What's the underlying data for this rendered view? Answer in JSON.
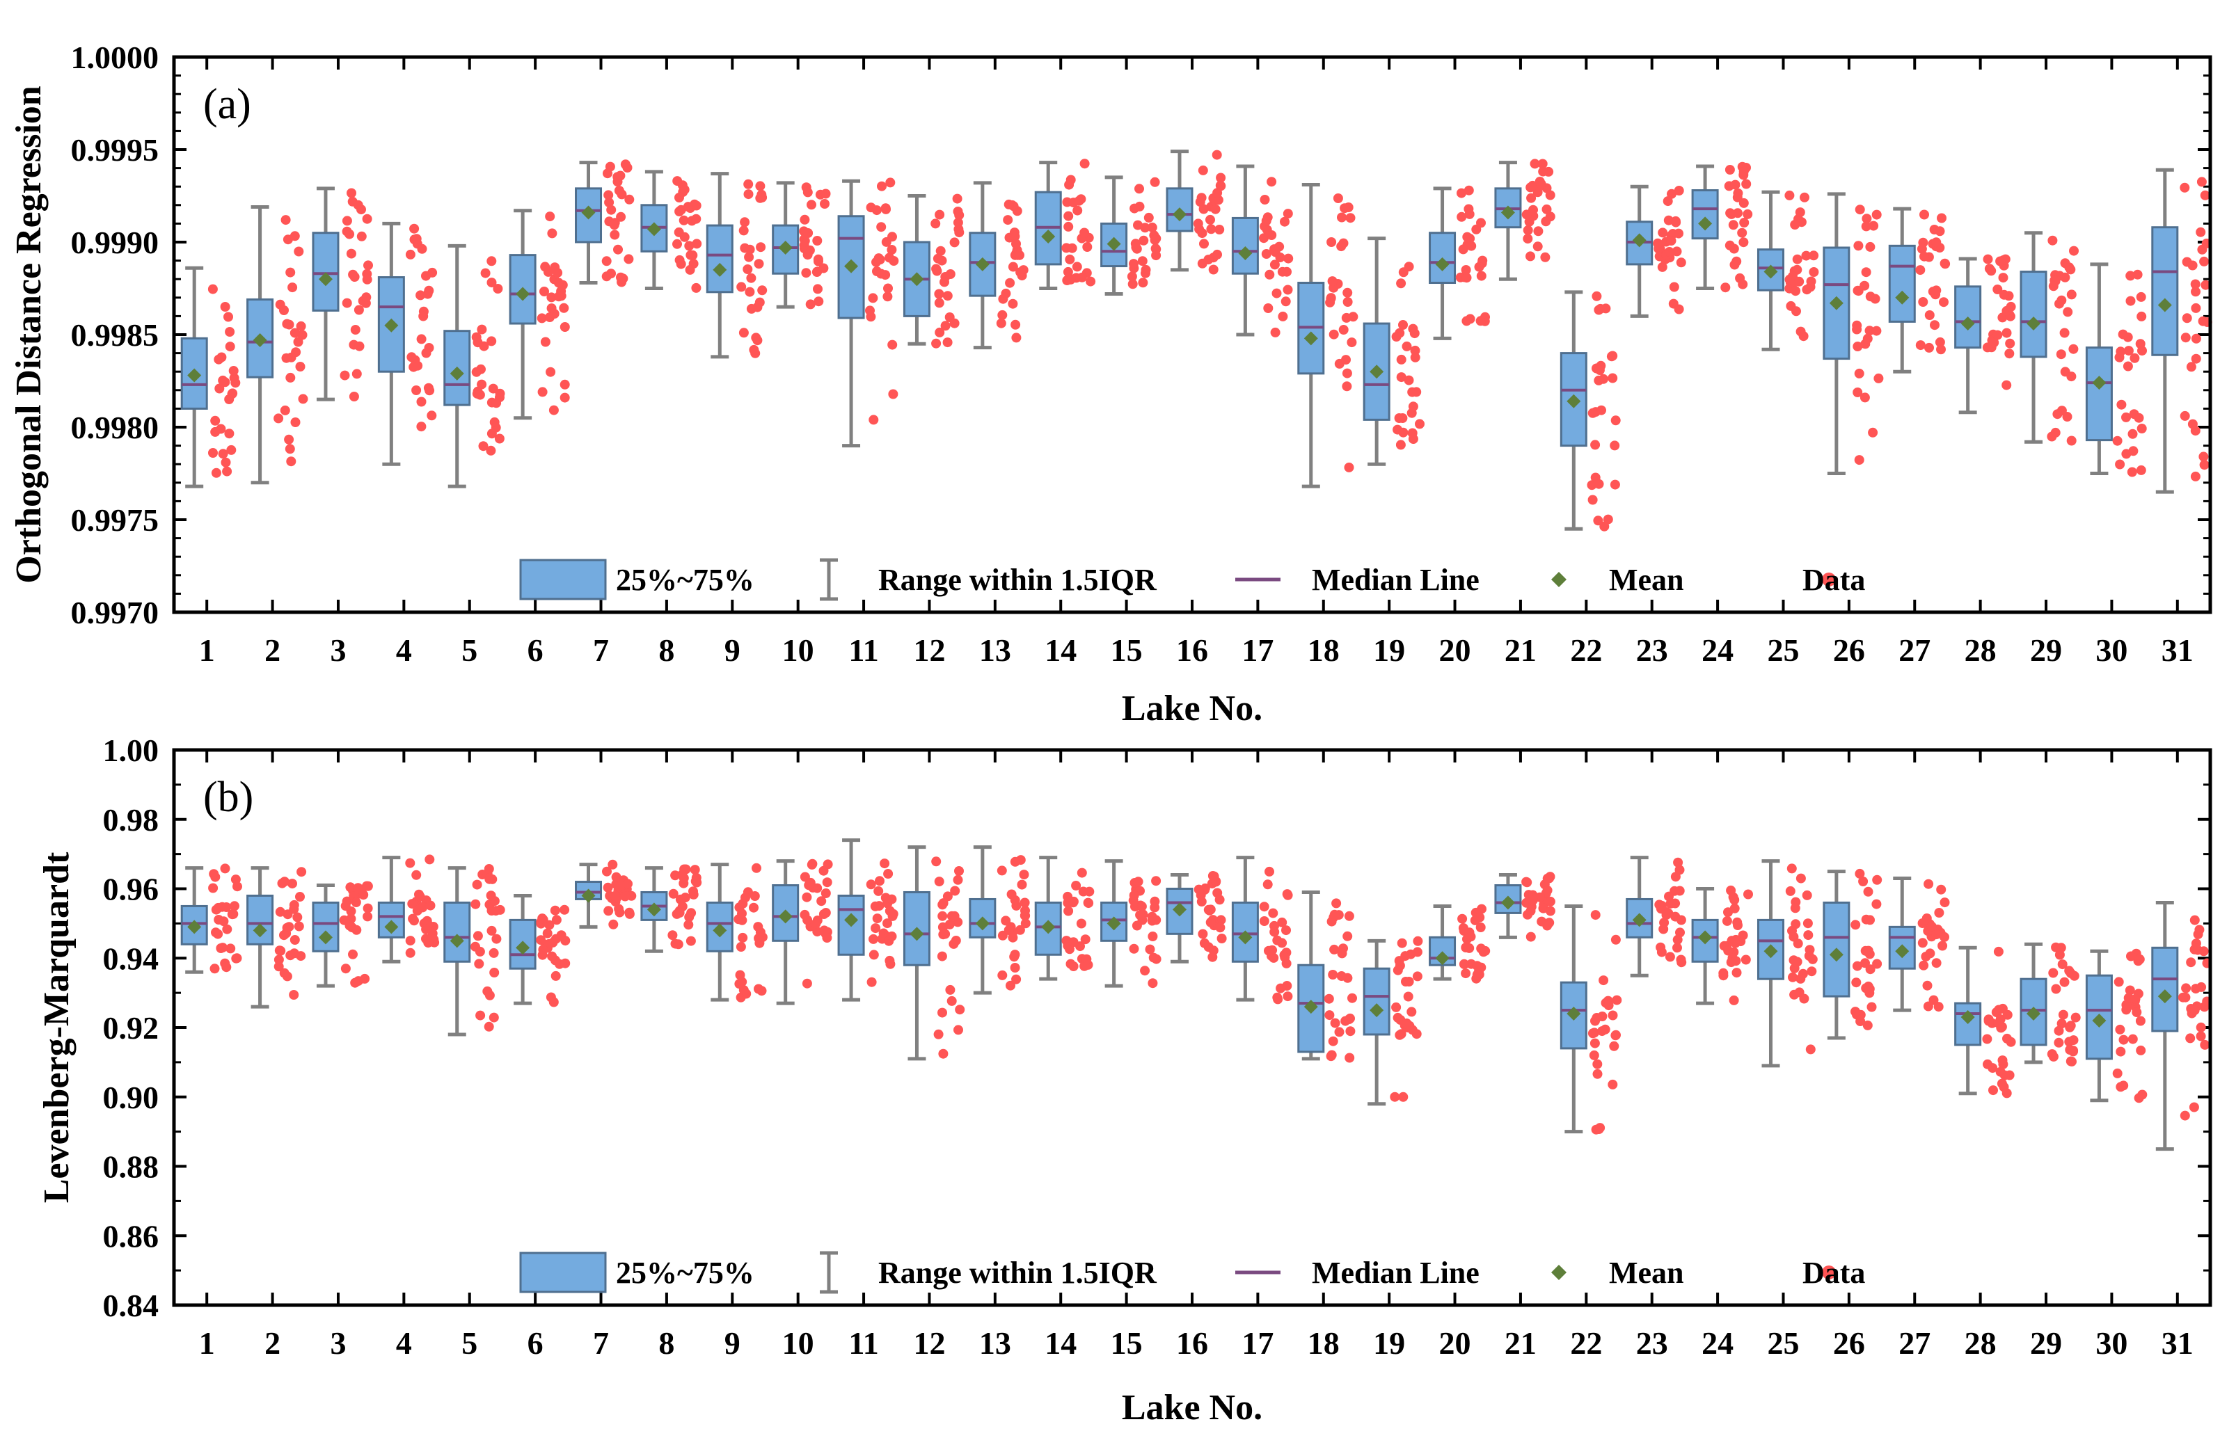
{
  "chart_data": [
    {
      "type": "box",
      "panel_label": "(a)",
      "ylabel": "Orthogonal Distance Regression",
      "xlabel": "Lake No.",
      "ylim": [
        0.997,
        1.0
      ],
      "yticks": [
        "0.9970",
        "0.9975",
        "0.9980",
        "0.9985",
        "0.9990",
        "0.9995",
        "1.0000"
      ],
      "categories": [
        "1",
        "2",
        "3",
        "4",
        "5",
        "6",
        "7",
        "8",
        "9",
        "10",
        "11",
        "12",
        "13",
        "14",
        "15",
        "16",
        "17",
        "18",
        "19",
        "20",
        "21",
        "22",
        "23",
        "24",
        "25",
        "26",
        "27",
        "28",
        "29",
        "30",
        "31"
      ],
      "whisker_low": [
        0.99768,
        0.9977,
        0.99815,
        0.9978,
        0.99768,
        0.99805,
        0.99878,
        0.99875,
        0.99838,
        0.99865,
        0.9979,
        0.99845,
        0.99843,
        0.99875,
        0.99872,
        0.99885,
        0.9985,
        0.99768,
        0.9978,
        0.99848,
        0.9988,
        0.99745,
        0.9986,
        0.99875,
        0.99842,
        0.99775,
        0.9983,
        0.99808,
        0.99792,
        0.99775,
        0.99765
      ],
      "q1": [
        0.9981,
        0.99827,
        0.99863,
        0.9983,
        0.99812,
        0.99856,
        0.999,
        0.99895,
        0.99873,
        0.99883,
        0.99859,
        0.9986,
        0.99871,
        0.99888,
        0.99887,
        0.99906,
        0.99883,
        0.99829,
        0.99804,
        0.99878,
        0.99908,
        0.9979,
        0.99888,
        0.99902,
        0.99874,
        0.99837,
        0.99857,
        0.99843,
        0.99838,
        0.99793,
        0.99839
      ],
      "median": [
        0.99823,
        0.99846,
        0.99883,
        0.99865,
        0.99823,
        0.99872,
        0.99917,
        0.99908,
        0.99893,
        0.99897,
        0.99902,
        0.9988,
        0.99889,
        0.99908,
        0.99895,
        0.99915,
        0.99895,
        0.99854,
        0.99823,
        0.99889,
        0.99918,
        0.9982,
        0.999,
        0.99918,
        0.99886,
        0.99877,
        0.99887,
        0.99857,
        0.99857,
        0.99824,
        0.99884
      ],
      "q3": [
        0.99848,
        0.99869,
        0.99905,
        0.99881,
        0.99852,
        0.99893,
        0.99929,
        0.9992,
        0.99909,
        0.99909,
        0.99914,
        0.999,
        0.99905,
        0.99927,
        0.9991,
        0.99929,
        0.99913,
        0.99878,
        0.99856,
        0.99905,
        0.99929,
        0.9984,
        0.99911,
        0.99928,
        0.99896,
        0.99897,
        0.99898,
        0.99876,
        0.99884,
        0.99843,
        0.99908
      ],
      "whisker_high": [
        0.99886,
        0.99919,
        0.99929,
        0.9991,
        0.99898,
        0.99917,
        0.99943,
        0.99938,
        0.99937,
        0.99932,
        0.99933,
        0.99925,
        0.99932,
        0.99943,
        0.99935,
        0.99949,
        0.99941,
        0.99931,
        0.99902,
        0.99929,
        0.99943,
        0.99873,
        0.9993,
        0.99941,
        0.99927,
        0.99926,
        0.99918,
        0.99891,
        0.99905,
        0.99888,
        0.99939
      ],
      "mean": [
        0.99828,
        0.99847,
        0.9988,
        0.99855,
        0.99829,
        0.99872,
        0.99916,
        0.99907,
        0.99885,
        0.99897,
        0.99887,
        0.9988,
        0.99888,
        0.99903,
        0.99899,
        0.99915,
        0.99894,
        0.99848,
        0.9983,
        0.99888,
        0.99916,
        0.99814,
        0.99901,
        0.9991,
        0.99884,
        0.99867,
        0.9987,
        0.99856,
        0.99856,
        0.99824,
        0.99866
      ],
      "legend": [
        "25%~75%",
        "Range within 1.5IQR",
        "Median Line",
        "Mean",
        "Data"
      ]
    },
    {
      "type": "box",
      "panel_label": "(b)",
      "ylabel": "Levenberg-Marquardt",
      "xlabel": "Lake No.",
      "ylim": [
        0.84,
        1.0
      ],
      "yticks": [
        "0.84",
        "0.86",
        "0.88",
        "0.90",
        "0.92",
        "0.94",
        "0.96",
        "0.98",
        "1.00"
      ],
      "categories": [
        "1",
        "2",
        "3",
        "4",
        "5",
        "6",
        "7",
        "8",
        "9",
        "10",
        "11",
        "12",
        "13",
        "14",
        "15",
        "16",
        "17",
        "18",
        "19",
        "20",
        "21",
        "22",
        "23",
        "24",
        "25",
        "26",
        "27",
        "28",
        "29",
        "30",
        "31"
      ],
      "whisker_low": [
        0.936,
        0.926,
        0.932,
        0.939,
        0.918,
        0.927,
        0.949,
        0.942,
        0.928,
        0.927,
        0.928,
        0.911,
        0.93,
        0.934,
        0.932,
        0.939,
        0.928,
        0.911,
        0.898,
        0.934,
        0.946,
        0.89,
        0.935,
        0.927,
        0.909,
        0.917,
        0.925,
        0.901,
        0.91,
        0.899,
        0.885
      ],
      "q1": [
        0.944,
        0.944,
        0.942,
        0.946,
        0.939,
        0.937,
        0.957,
        0.951,
        0.942,
        0.945,
        0.941,
        0.938,
        0.946,
        0.941,
        0.945,
        0.947,
        0.939,
        0.913,
        0.918,
        0.938,
        0.953,
        0.914,
        0.946,
        0.939,
        0.934,
        0.929,
        0.937,
        0.915,
        0.915,
        0.911,
        0.919
      ],
      "median": [
        0.95,
        0.95,
        0.95,
        0.952,
        0.946,
        0.941,
        0.959,
        0.955,
        0.95,
        0.952,
        0.954,
        0.947,
        0.95,
        0.949,
        0.951,
        0.956,
        0.947,
        0.927,
        0.929,
        0.94,
        0.956,
        0.925,
        0.95,
        0.946,
        0.945,
        0.946,
        0.946,
        0.924,
        0.925,
        0.925,
        0.934
      ],
      "q3": [
        0.955,
        0.958,
        0.956,
        0.956,
        0.956,
        0.951,
        0.962,
        0.959,
        0.956,
        0.961,
        0.958,
        0.959,
        0.957,
        0.956,
        0.956,
        0.96,
        0.956,
        0.938,
        0.937,
        0.946,
        0.961,
        0.933,
        0.957,
        0.951,
        0.951,
        0.956,
        0.949,
        0.927,
        0.934,
        0.935,
        0.943
      ],
      "whisker_high": [
        0.966,
        0.966,
        0.961,
        0.969,
        0.966,
        0.958,
        0.967,
        0.966,
        0.967,
        0.968,
        0.974,
        0.972,
        0.972,
        0.969,
        0.968,
        0.964,
        0.969,
        0.959,
        0.945,
        0.955,
        0.964,
        0.955,
        0.969,
        0.96,
        0.968,
        0.965,
        0.963,
        0.943,
        0.944,
        0.942,
        0.956
      ],
      "mean": [
        0.949,
        0.948,
        0.946,
        0.949,
        0.945,
        0.943,
        0.958,
        0.954,
        0.948,
        0.952,
        0.951,
        0.947,
        0.95,
        0.949,
        0.95,
        0.954,
        0.946,
        0.926,
        0.925,
        0.94,
        0.956,
        0.924,
        0.951,
        0.946,
        0.942,
        0.941,
        0.942,
        0.923,
        0.924,
        0.922,
        0.929
      ],
      "legend": [
        "25%~75%",
        "Range within 1.5IQR",
        "Median Line",
        "Mean",
        "Data"
      ]
    }
  ],
  "colors": {
    "box_fill": "#74ABDF",
    "box_edge": "#4F6F8F",
    "whisker": "#808080",
    "median": "#7A4A80",
    "mean": "#5E7F3A",
    "data": "#FF5555",
    "axis": "#000000"
  }
}
